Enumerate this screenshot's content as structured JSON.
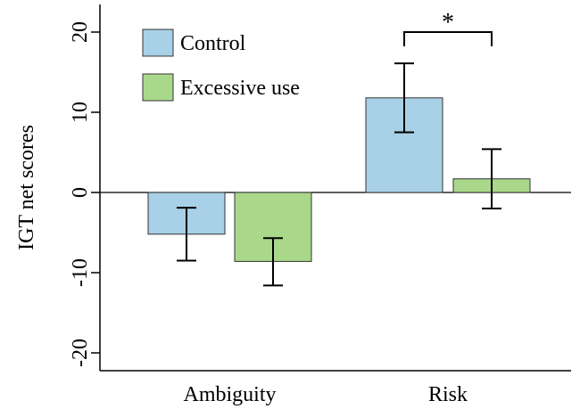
{
  "chart_data": {
    "type": "bar",
    "title": "",
    "xlabel": "",
    "ylabel": "IGT net scores",
    "ylim": [
      -23,
      24
    ],
    "yticks": [
      -20,
      -10,
      0,
      10,
      20
    ],
    "ytick_labels": [
      "-20",
      "-10",
      "0",
      "10",
      "20"
    ],
    "categories": [
      "Ambiguity",
      "Risk"
    ],
    "series": [
      {
        "name": "Control",
        "color": "#a8d0e6",
        "values": [
          -5.2,
          11.8
        ],
        "error_low": [
          -8.5,
          7.5
        ],
        "error_high": [
          -1.9,
          16.1
        ]
      },
      {
        "name": "Excessive use",
        "color": "#a9d88b",
        "values": [
          -8.6,
          1.7
        ],
        "error_low": [
          -11.6,
          -2.0
        ],
        "error_high": [
          -5.7,
          5.4
        ]
      }
    ],
    "significance": {
      "label": "*",
      "category": "Risk"
    },
    "legend_position": "top-left",
    "grid": false
  }
}
